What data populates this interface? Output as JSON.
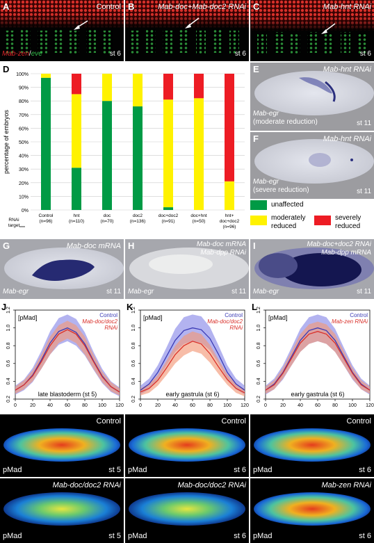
{
  "panels": {
    "A": {
      "letter": "A",
      "title": "Control",
      "marker_a": "Mab-zen",
      "marker_sep": "/",
      "marker_b": "eve",
      "stage": "st 6"
    },
    "B": {
      "letter": "B",
      "title": "Mab-doc+Mab-doc2 RNAi",
      "stage": "st 6"
    },
    "C": {
      "letter": "C",
      "title": "Mab-hnt RNAi",
      "stage": "st 6"
    },
    "D": {
      "letter": "D"
    },
    "E": {
      "letter": "E",
      "title": "Mab-hnt RNAi",
      "gene": "Mab-egr",
      "note": "(moderate reduction)",
      "stage": "st 11"
    },
    "F": {
      "letter": "F",
      "title": "Mab-hnt RNAi",
      "gene": "Mab-egr",
      "note": "(severe reduction)",
      "stage": "st 11"
    },
    "G": {
      "letter": "G",
      "title": "Mab-doc mRNA",
      "gene": "Mab-egr",
      "stage": "st 11"
    },
    "H": {
      "letter": "H",
      "title1": "Mab-doc mRNA",
      "title2": "Mab-dpp RNAi",
      "gene": "Mab-egr",
      "stage": "st 11"
    },
    "I": {
      "letter": "I",
      "title1": "Mab-doc+doc2 RNAi",
      "title2": "Mab-dpp mRNA",
      "gene": "Mab-egr",
      "stage": "st 11"
    },
    "J": {
      "letter": "J"
    },
    "K": {
      "letter": "K"
    },
    "L": {
      "letter": "L"
    }
  },
  "legend": {
    "unaffected": "unaffected",
    "moderate1": "moderately",
    "moderate2": "reduced",
    "severe1": "severely",
    "severe2": "reduced",
    "colors": {
      "unaffected": "#009a45",
      "moderate": "#fff200",
      "severe": "#ed1c24"
    }
  },
  "heatmaps": [
    {
      "title": "Control",
      "label": "pMad",
      "stage": "st 5"
    },
    {
      "title": "Control",
      "label": "pMad",
      "stage": "st 6"
    },
    {
      "title": "Control",
      "label": "pMad",
      "stage": "st 6"
    },
    {
      "title": "Mab-doc/doc2 RNAi",
      "label": "pMad",
      "stage": "st 5"
    },
    {
      "title": "Mab-doc/doc2 RNAi",
      "label": "pMad",
      "stage": "st 6"
    },
    {
      "title": "Mab-zen RNAi",
      "label": "pMad",
      "stage": "st 6"
    }
  ],
  "chart_data": [
    {
      "type": "bar",
      "stacked": true,
      "ylabel": "percentage of embryos",
      "xlabel": "RNAi target",
      "ylim": [
        0,
        100
      ],
      "ytick_labels": [
        "0%",
        "10%",
        "20%",
        "30%",
        "40%",
        "50%",
        "60%",
        "70%",
        "80%",
        "90%",
        "100%"
      ],
      "categories": [
        {
          "name": "Control",
          "n": "(n=96)"
        },
        {
          "name": "hnt",
          "n": "(n=110)"
        },
        {
          "name": "doc",
          "n": "(n=70)"
        },
        {
          "name": "doc2",
          "n": "(n=136)"
        },
        {
          "name": "doc+doc2",
          "n": "(n=91)"
        },
        {
          "name": "doc+hnt",
          "n": "(n=50)"
        },
        {
          "name": "hnt+ doc+doc2",
          "n": "(n=96)"
        }
      ],
      "series": [
        {
          "name": "unaffected",
          "color": "#009a45",
          "values": [
            97,
            31,
            80,
            76,
            2,
            0,
            0
          ]
        },
        {
          "name": "moderately reduced",
          "color": "#fff200",
          "values": [
            3,
            54,
            20,
            24,
            79,
            82,
            21
          ]
        },
        {
          "name": "severely reduced",
          "color": "#ed1c24",
          "values": [
            0,
            15,
            0,
            0,
            19,
            18,
            79
          ]
        }
      ]
    },
    {
      "type": "line",
      "inset_label": "[pMad]",
      "caption": "late blastoderm (st 5)",
      "xlim": [
        0,
        120
      ],
      "ylim": [
        0.2,
        1.2
      ],
      "xticks": [
        0,
        20,
        40,
        60,
        80,
        100,
        120
      ],
      "yticks": [
        0.2,
        0.4,
        0.6,
        0.8,
        1.0,
        1.2
      ],
      "ytick_labels": [
        "0.2",
        "0.4",
        "0.6",
        "0.8",
        "1.0",
        "1.2"
      ],
      "legend": [
        "Control",
        "Mab-doc/doc2",
        "RNAi"
      ],
      "series": [
        {
          "name": "Control",
          "color": "#3a3ab5",
          "band": "#8a8ae8",
          "x": [
            0,
            10,
            20,
            30,
            40,
            50,
            60,
            70,
            80,
            90,
            100,
            110,
            120
          ],
          "y": [
            0.3,
            0.36,
            0.47,
            0.64,
            0.83,
            0.96,
            1.0,
            0.95,
            0.82,
            0.63,
            0.46,
            0.34,
            0.28
          ],
          "sd": [
            0.05,
            0.06,
            0.08,
            0.1,
            0.13,
            0.15,
            0.15,
            0.15,
            0.13,
            0.1,
            0.08,
            0.06,
            0.05
          ]
        },
        {
          "name": "Mab-doc/doc2 RNAi",
          "color": "#d9302a",
          "band": "#f39a7a",
          "x": [
            0,
            10,
            20,
            30,
            40,
            50,
            60,
            70,
            80,
            90,
            100,
            110,
            120
          ],
          "y": [
            0.3,
            0.36,
            0.46,
            0.62,
            0.8,
            0.93,
            0.98,
            0.93,
            0.8,
            0.62,
            0.45,
            0.34,
            0.28
          ],
          "sd": [
            0.04,
            0.05,
            0.06,
            0.08,
            0.1,
            0.1,
            0.1,
            0.1,
            0.1,
            0.08,
            0.06,
            0.05,
            0.04
          ]
        }
      ]
    },
    {
      "type": "line",
      "inset_label": "[pMad]",
      "caption": "early gastrula (st 6)",
      "xlim": [
        0,
        120
      ],
      "ylim": [
        0.2,
        1.2
      ],
      "xticks": [
        0,
        20,
        40,
        60,
        80,
        100,
        120
      ],
      "yticks": [
        0.2,
        0.4,
        0.6,
        0.8,
        1.0,
        1.2
      ],
      "ytick_labels": [
        "0.2",
        "0.4",
        "0.6",
        "0.8",
        "1.0",
        "1.2"
      ],
      "legend": [
        "Control",
        "Mab-doc/doc2",
        "RNAi"
      ],
      "series": [
        {
          "name": "Control",
          "color": "#3a3ab5",
          "band": "#8a8ae8",
          "x": [
            0,
            10,
            20,
            30,
            40,
            50,
            60,
            70,
            80,
            90,
            100,
            110,
            120
          ],
          "y": [
            0.3,
            0.37,
            0.5,
            0.68,
            0.86,
            0.97,
            1.0,
            0.98,
            0.88,
            0.7,
            0.5,
            0.37,
            0.3
          ],
          "sd": [
            0.05,
            0.06,
            0.08,
            0.1,
            0.13,
            0.15,
            0.15,
            0.15,
            0.13,
            0.1,
            0.08,
            0.06,
            0.05
          ]
        },
        {
          "name": "Mab-doc/doc2 RNAi",
          "color": "#d9302a",
          "band": "#f39a7a",
          "x": [
            0,
            10,
            20,
            30,
            40,
            50,
            60,
            70,
            80,
            90,
            100,
            110,
            120
          ],
          "y": [
            0.28,
            0.32,
            0.41,
            0.55,
            0.7,
            0.8,
            0.85,
            0.82,
            0.71,
            0.56,
            0.42,
            0.32,
            0.27
          ],
          "sd": [
            0.04,
            0.05,
            0.06,
            0.08,
            0.1,
            0.11,
            0.11,
            0.11,
            0.1,
            0.08,
            0.06,
            0.05,
            0.04
          ]
        }
      ]
    },
    {
      "type": "line",
      "inset_label": "[pMad]",
      "caption": "early gastrula (st 6)",
      "xlim": [
        0,
        120
      ],
      "ylim": [
        0.2,
        1.2
      ],
      "xticks": [
        0,
        20,
        40,
        60,
        80,
        100,
        120
      ],
      "yticks": [
        0.2,
        0.4,
        0.6,
        0.8,
        1.0,
        1.2
      ],
      "ytick_labels": [
        "0.2",
        "0.4",
        "0.6",
        "0.8",
        "1.0",
        "1.2"
      ],
      "legend": [
        "Control",
        "Mab-zen RNAi"
      ],
      "series": [
        {
          "name": "Control",
          "color": "#3a3ab5",
          "band": "#8a8ae8",
          "x": [
            0,
            10,
            20,
            30,
            40,
            50,
            60,
            70,
            80,
            90,
            100,
            110,
            120
          ],
          "y": [
            0.3,
            0.37,
            0.5,
            0.68,
            0.86,
            0.97,
            1.0,
            0.97,
            0.86,
            0.68,
            0.5,
            0.37,
            0.3
          ],
          "sd": [
            0.05,
            0.06,
            0.08,
            0.1,
            0.13,
            0.15,
            0.15,
            0.15,
            0.13,
            0.1,
            0.08,
            0.06,
            0.05
          ]
        },
        {
          "name": "Mab-zen RNAi",
          "color": "#d9302a",
          "band": "#f39a7a",
          "x": [
            0,
            10,
            20,
            30,
            40,
            50,
            60,
            70,
            80,
            90,
            100,
            110,
            120
          ],
          "y": [
            0.3,
            0.36,
            0.49,
            0.66,
            0.83,
            0.93,
            0.96,
            0.93,
            0.83,
            0.66,
            0.49,
            0.36,
            0.3
          ],
          "sd": [
            0.04,
            0.05,
            0.06,
            0.08,
            0.1,
            0.11,
            0.11,
            0.11,
            0.1,
            0.08,
            0.06,
            0.05,
            0.04
          ]
        }
      ]
    }
  ]
}
